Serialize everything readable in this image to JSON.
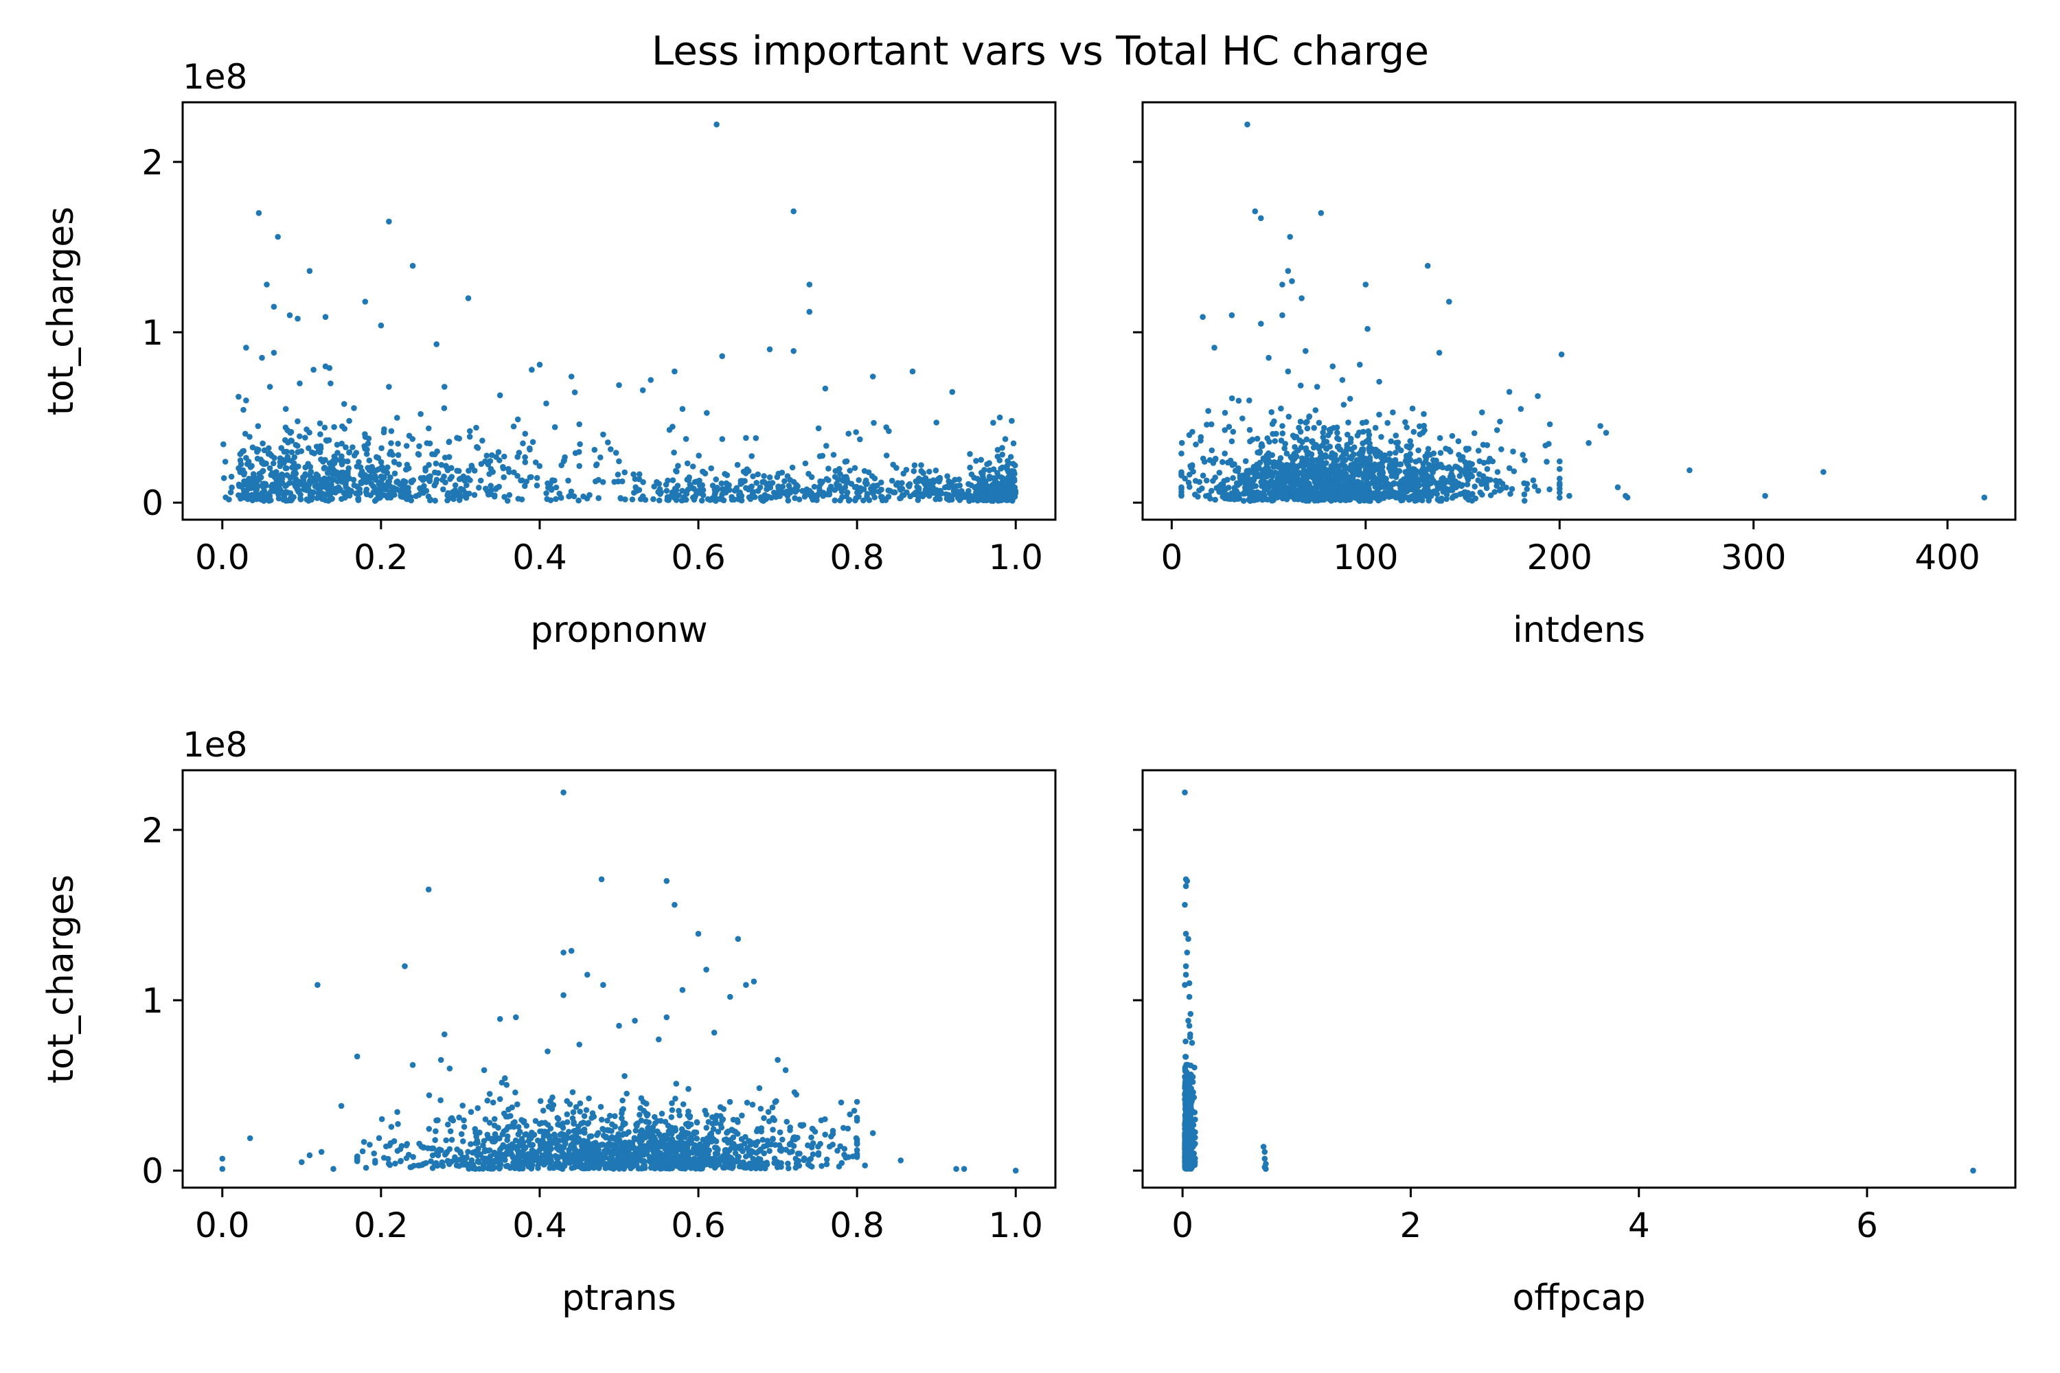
{
  "figure": {
    "title": "Less important vars vs Total HC charge",
    "point_color": "#1f77b4",
    "axis_color": "#000000",
    "background": "#ffffff"
  },
  "chart_data": [
    {
      "type": "scatter",
      "title": "",
      "xlabel": "propnonw",
      "ylabel": "tot_charges",
      "y_offset_text": "1e8",
      "xlim": [
        -0.05,
        1.05
      ],
      "ylim": [
        -0.1,
        2.35
      ],
      "xticks": [
        0.0,
        0.2,
        0.4,
        0.6,
        0.8,
        1.0
      ],
      "xtick_labels": [
        "0.0",
        "0.2",
        "0.4",
        "0.6",
        "0.8",
        "1.0"
      ],
      "yticks": [
        0,
        1,
        2
      ],
      "ytick_labels": [
        "0",
        "1",
        "2"
      ],
      "show_ytick_labels": true,
      "grid": false,
      "points": [
        [
          0.623,
          2.22
        ],
        [
          0.046,
          1.7
        ],
        [
          0.72,
          1.71
        ],
        [
          0.21,
          1.65
        ],
        [
          0.07,
          1.56
        ],
        [
          0.24,
          1.39
        ],
        [
          0.11,
          1.36
        ],
        [
          0.74,
          1.28
        ],
        [
          0.056,
          1.28
        ],
        [
          0.18,
          1.18
        ],
        [
          0.31,
          1.2
        ],
        [
          0.065,
          1.15
        ],
        [
          0.085,
          1.1
        ],
        [
          0.74,
          1.12
        ],
        [
          0.13,
          1.09
        ],
        [
          0.2,
          1.04
        ],
        [
          0.095,
          1.08
        ],
        [
          0.27,
          0.93
        ],
        [
          0.03,
          0.91
        ],
        [
          0.69,
          0.9
        ],
        [
          0.72,
          0.89
        ],
        [
          0.065,
          0.88
        ],
        [
          0.05,
          0.85
        ],
        [
          0.63,
          0.86
        ],
        [
          0.4,
          0.81
        ],
        [
          0.87,
          0.77
        ],
        [
          0.13,
          0.8
        ],
        [
          0.57,
          0.77
        ],
        [
          0.82,
          0.74
        ],
        [
          0.44,
          0.74
        ],
        [
          0.115,
          0.78
        ],
        [
          0.135,
          0.79
        ],
        [
          0.39,
          0.78
        ],
        [
          0.54,
          0.72
        ],
        [
          0.5,
          0.69
        ],
        [
          0.53,
          0.66
        ],
        [
          0.92,
          0.65
        ],
        [
          0.28,
          0.68
        ],
        [
          0.06,
          0.68
        ],
        [
          0.21,
          0.68
        ],
        [
          0.76,
          0.67
        ],
        [
          0.35,
          0.63
        ],
        [
          0.58,
          0.55
        ],
        [
          0.98,
          0.5
        ],
        [
          0.995,
          0.48
        ],
        [
          0.16,
          0.48
        ],
        [
          0.9,
          0.47
        ],
        [
          0.45,
          0.46
        ],
        [
          0.32,
          0.44
        ],
        [
          0.03,
          0.6
        ],
        [
          0.08,
          0.55
        ],
        [
          0.25,
          0.52
        ],
        [
          0.48,
          0.4
        ],
        [
          0.66,
          0.38
        ],
        [
          0.84,
          0.42
        ]
      ],
      "cluster_points": 1500
    },
    {
      "type": "scatter",
      "title": "",
      "xlabel": "intdens",
      "ylabel": "",
      "y_offset_text": "",
      "xlim": [
        -15,
        435
      ],
      "ylim": [
        -0.1,
        2.35
      ],
      "xticks": [
        0,
        100,
        200,
        300,
        400
      ],
      "xtick_labels": [
        "0",
        "100",
        "200",
        "300",
        "400"
      ],
      "yticks": [
        0,
        1,
        2
      ],
      "ytick_labels": [
        "",
        "",
        ""
      ],
      "show_ytick_labels": false,
      "grid": false,
      "points": [
        [
          39,
          2.22
        ],
        [
          43,
          1.71
        ],
        [
          46,
          1.67
        ],
        [
          77,
          1.7
        ],
        [
          61,
          1.56
        ],
        [
          132,
          1.39
        ],
        [
          60,
          1.36
        ],
        [
          62,
          1.3
        ],
        [
          100,
          1.28
        ],
        [
          57,
          1.28
        ],
        [
          143,
          1.18
        ],
        [
          67,
          1.2
        ],
        [
          31,
          1.1
        ],
        [
          16,
          1.09
        ],
        [
          57,
          1.1
        ],
        [
          46,
          1.05
        ],
        [
          101,
          1.02
        ],
        [
          22,
          0.91
        ],
        [
          138,
          0.88
        ],
        [
          201,
          0.87
        ],
        [
          69,
          0.89
        ],
        [
          50,
          0.85
        ],
        [
          97,
          0.81
        ],
        [
          83,
          0.8
        ],
        [
          60,
          0.77
        ],
        [
          107,
          0.71
        ],
        [
          180,
          0.55
        ],
        [
          160,
          0.53
        ],
        [
          130,
          0.52
        ],
        [
          221,
          0.45
        ],
        [
          224,
          0.41
        ],
        [
          195,
          0.46
        ],
        [
          215,
          0.35
        ],
        [
          267,
          0.19
        ],
        [
          336,
          0.18
        ],
        [
          306,
          0.04
        ],
        [
          419,
          0.03
        ],
        [
          230,
          0.09
        ],
        [
          234,
          0.04
        ],
        [
          235,
          0.03
        ],
        [
          189,
          0.07
        ],
        [
          205,
          0.04
        ],
        [
          176,
          0.3
        ],
        [
          168,
          0.18
        ],
        [
          152,
          0.31
        ],
        [
          114,
          0.53
        ],
        [
          92,
          0.61
        ],
        [
          75,
          0.68
        ],
        [
          88,
          0.72
        ],
        [
          40,
          0.6
        ]
      ],
      "cluster_points": 1500
    },
    {
      "type": "scatter",
      "title": "",
      "xlabel": "ptrans",
      "ylabel": "tot_charges",
      "y_offset_text": "1e8",
      "xlim": [
        -0.05,
        1.05
      ],
      "ylim": [
        -0.1,
        2.35
      ],
      "xticks": [
        0.0,
        0.2,
        0.4,
        0.6,
        0.8,
        1.0
      ],
      "xtick_labels": [
        "0.0",
        "0.2",
        "0.4",
        "0.6",
        "0.8",
        "1.0"
      ],
      "yticks": [
        0,
        1,
        2
      ],
      "ytick_labels": [
        "0",
        "1",
        "2"
      ],
      "show_ytick_labels": true,
      "grid": false,
      "points": [
        [
          0.43,
          2.22
        ],
        [
          0.478,
          1.71
        ],
        [
          0.56,
          1.7
        ],
        [
          0.26,
          1.65
        ],
        [
          0.57,
          1.56
        ],
        [
          0.6,
          1.39
        ],
        [
          0.65,
          1.36
        ],
        [
          0.43,
          1.28
        ],
        [
          0.44,
          1.29
        ],
        [
          0.23,
          1.2
        ],
        [
          0.61,
          1.18
        ],
        [
          0.46,
          1.15
        ],
        [
          0.67,
          1.11
        ],
        [
          0.12,
          1.09
        ],
        [
          0.48,
          1.09
        ],
        [
          0.66,
          1.09
        ],
        [
          0.58,
          1.06
        ],
        [
          0.43,
          1.03
        ],
        [
          0.64,
          1.02
        ],
        [
          0.35,
          0.89
        ],
        [
          0.37,
          0.9
        ],
        [
          0.56,
          0.9
        ],
        [
          0.52,
          0.88
        ],
        [
          0.5,
          0.85
        ],
        [
          0.28,
          0.8
        ],
        [
          0.45,
          0.74
        ],
        [
          0.0,
          0.07
        ],
        [
          0.0,
          0.01
        ],
        [
          0.035,
          0.19
        ],
        [
          0.935,
          0.01
        ],
        [
          0.925,
          0.01
        ],
        [
          1.0,
          0.0
        ],
        [
          0.855,
          0.06
        ],
        [
          0.82,
          0.22
        ],
        [
          0.81,
          0.03
        ],
        [
          0.1,
          0.05
        ],
        [
          0.11,
          0.09
        ],
        [
          0.125,
          0.11
        ],
        [
          0.14,
          0.01
        ],
        [
          0.17,
          0.67
        ],
        [
          0.15,
          0.38
        ],
        [
          0.7,
          0.65
        ],
        [
          0.78,
          0.4
        ],
        [
          0.71,
          0.59
        ],
        [
          0.35,
          0.42
        ],
        [
          0.62,
          0.81
        ],
        [
          0.55,
          0.77
        ],
        [
          0.24,
          0.62
        ],
        [
          0.33,
          0.59
        ],
        [
          0.41,
          0.7
        ]
      ],
      "cluster_points": 1500
    },
    {
      "type": "scatter",
      "title": "",
      "xlabel": "offpcap",
      "ylabel": "",
      "y_offset_text": "",
      "xlim": [
        -0.35,
        7.3
      ],
      "ylim": [
        -0.1,
        2.35
      ],
      "xticks": [
        0,
        2,
        4,
        6
      ],
      "xtick_labels": [
        "0",
        "2",
        "4",
        "6"
      ],
      "yticks": [
        0,
        1,
        2
      ],
      "ytick_labels": [
        "",
        "",
        ""
      ],
      "show_ytick_labels": false,
      "grid": false,
      "points": [
        [
          0.02,
          2.22
        ],
        [
          0.03,
          1.71
        ],
        [
          0.03,
          1.67
        ],
        [
          0.04,
          1.7
        ],
        [
          0.02,
          1.56
        ],
        [
          0.03,
          1.39
        ],
        [
          0.05,
          1.36
        ],
        [
          0.04,
          1.28
        ],
        [
          0.03,
          1.2
        ],
        [
          0.06,
          1.1
        ],
        [
          0.03,
          1.15
        ],
        [
          0.06,
          1.02
        ],
        [
          0.02,
          1.09
        ],
        [
          0.07,
          0.92
        ],
        [
          0.05,
          0.88
        ],
        [
          0.06,
          0.85
        ],
        [
          0.09,
          0.55
        ],
        [
          0.09,
          0.52
        ],
        [
          0.1,
          0.43
        ],
        [
          0.11,
          0.3
        ],
        [
          0.1,
          0.15
        ],
        [
          0.09,
          0.08
        ],
        [
          0.71,
          0.14
        ],
        [
          0.72,
          0.11
        ],
        [
          0.72,
          0.07
        ],
        [
          0.73,
          0.04
        ],
        [
          0.73,
          0.01
        ],
        [
          0.72,
          0.02
        ],
        [
          6.93,
          0.0
        ]
      ],
      "cluster_points": 900
    }
  ]
}
